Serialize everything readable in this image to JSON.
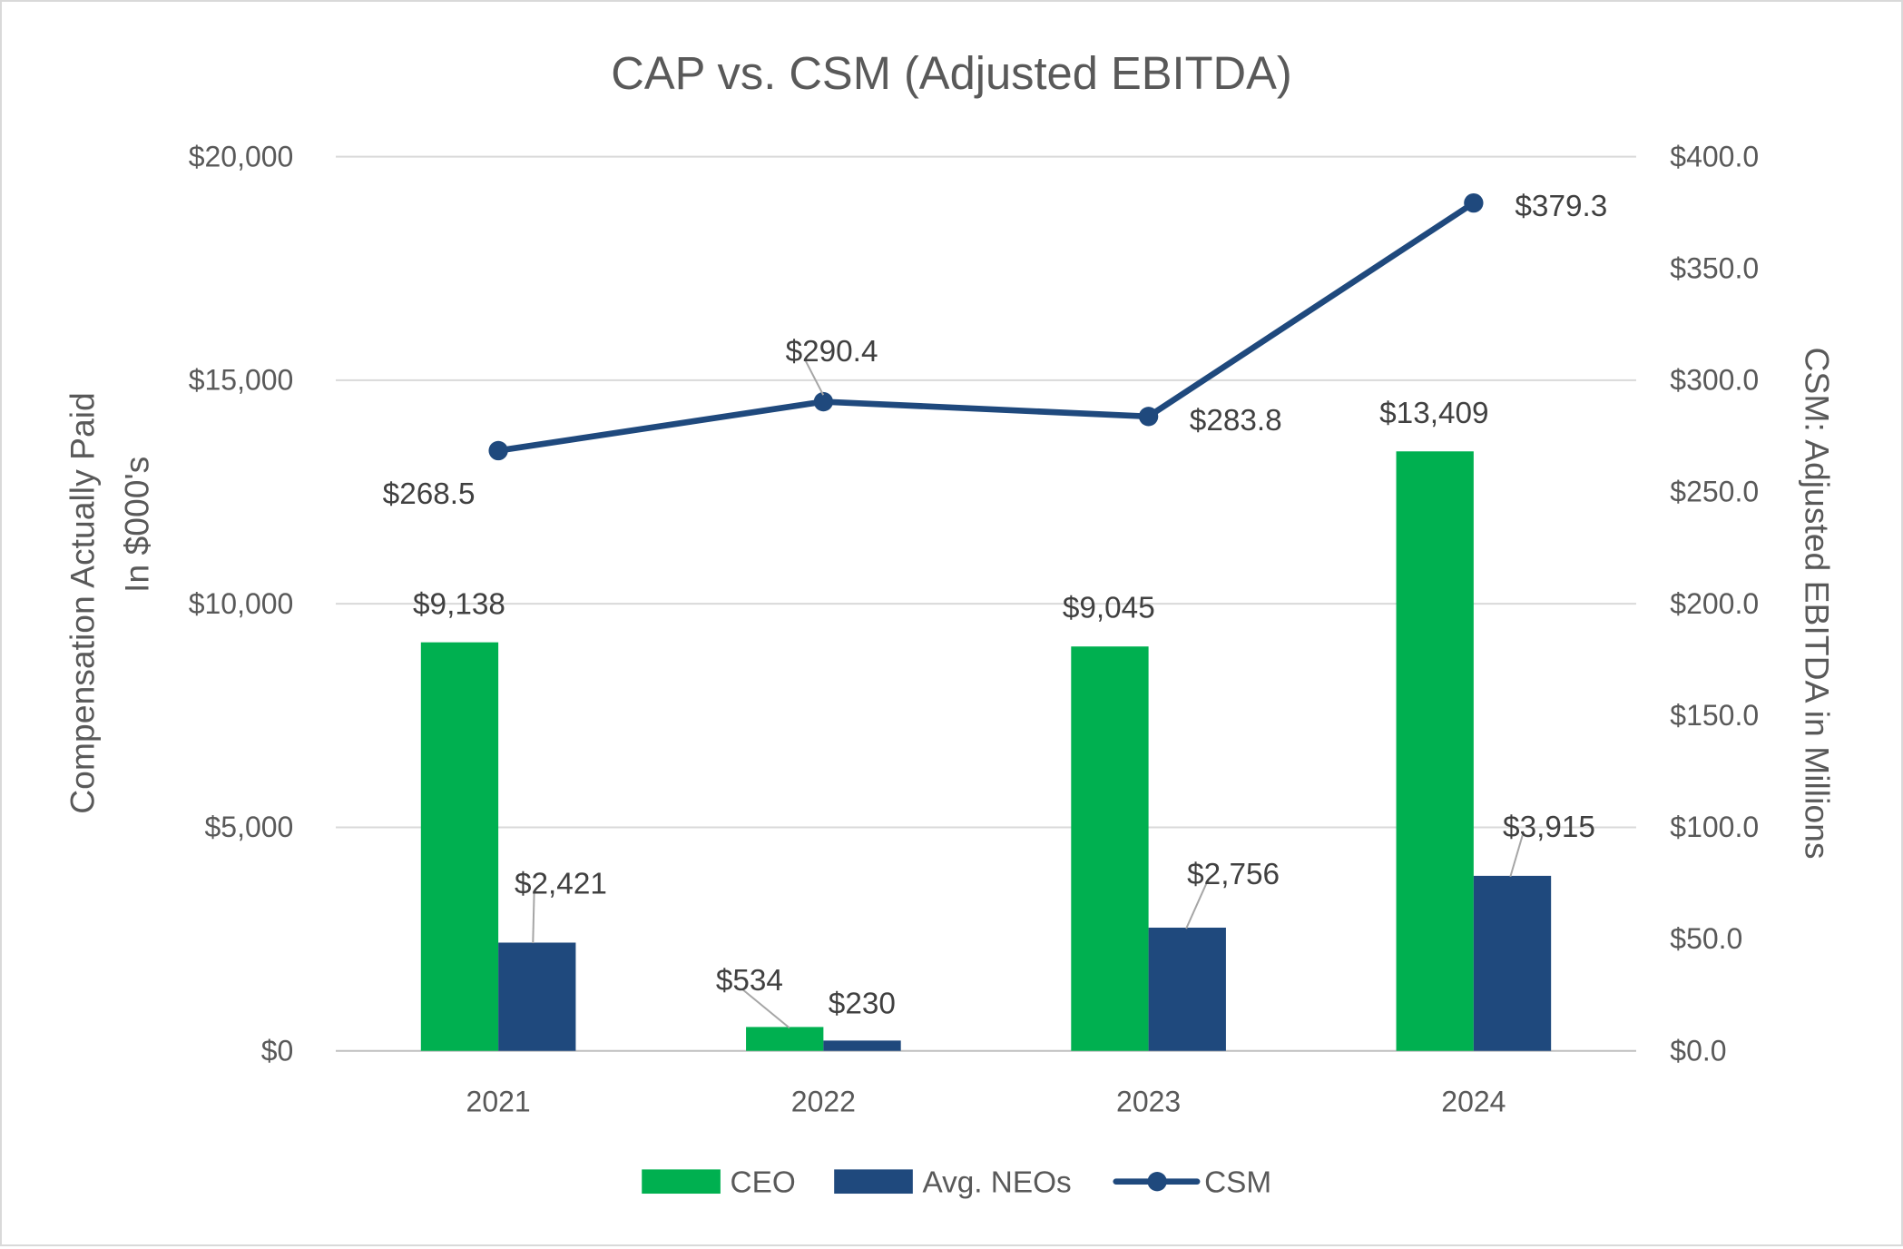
{
  "chart_data": {
    "type": "bar+line",
    "title": "CAP vs. CSM (Adjusted EBITDA)",
    "categories": [
      "2021",
      "2022",
      "2023",
      "2024"
    ],
    "ylabel_left": [
      "Compensation Actually Paid",
      "In $000's"
    ],
    "ylabel_right": "CSM: Adjusted EBITDA in Millions",
    "ylim_left": [
      0,
      20000
    ],
    "ylim_right": [
      0,
      400
    ],
    "yticks_left": [
      "$0",
      "$5,000",
      "$10,000",
      "$15,000",
      "$20,000"
    ],
    "yticks_right": [
      "$0.0",
      "$50.0",
      "$100.0",
      "$150.0",
      "$200.0",
      "$250.0",
      "$300.0",
      "$350.0",
      "$400.0"
    ],
    "grid": true,
    "legend_position": "bottom",
    "series": [
      {
        "name": "CEO",
        "type": "bar",
        "axis": "left",
        "color": "#00B050",
        "values": [
          9138,
          534,
          9045,
          13409
        ],
        "labels": [
          "$9,138",
          "$534",
          "$9,045",
          "$13,409"
        ]
      },
      {
        "name": "Avg. NEOs",
        "type": "bar",
        "axis": "left",
        "color": "#1F497D",
        "values": [
          2421,
          230,
          2756,
          3915
        ],
        "labels": [
          "$2,421",
          "$230",
          "$2,756",
          "$3,915"
        ]
      },
      {
        "name": "CSM",
        "type": "line",
        "axis": "right",
        "color": "#1F497D",
        "values": [
          268.5,
          290.4,
          283.8,
          379.3
        ],
        "labels": [
          "$268.5",
          "$290.4",
          "$283.8",
          "$379.3"
        ]
      }
    ]
  }
}
